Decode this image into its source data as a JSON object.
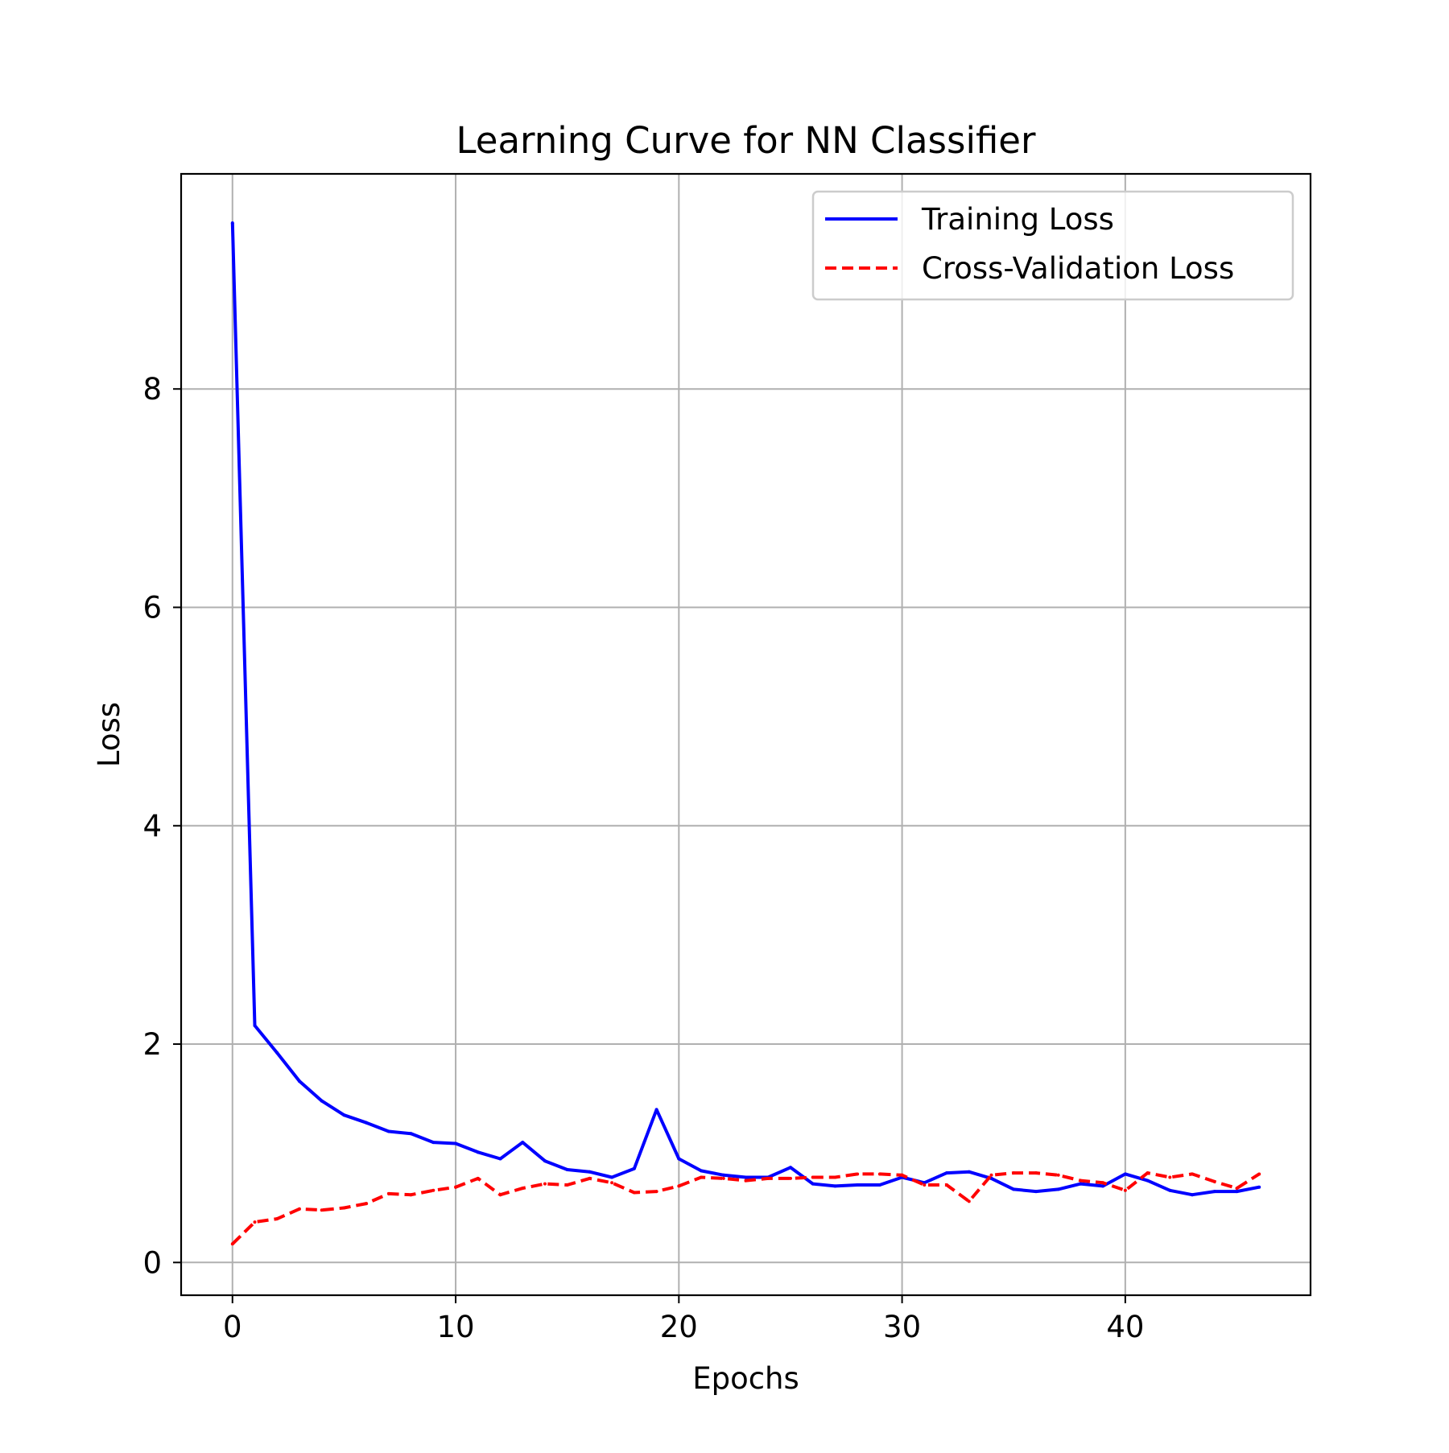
{
  "chart_data": {
    "type": "line",
    "title": "Learning Curve for NN Classifier",
    "xlabel": "Epochs",
    "ylabel": "Loss",
    "xlim": [
      -2.3,
      48.3
    ],
    "ylim": [
      -0.3,
      9.97
    ],
    "xticks": [
      0,
      10,
      20,
      30,
      40
    ],
    "yticks": [
      0,
      2,
      4,
      6,
      8
    ],
    "grid": true,
    "legend": {
      "placement": "top-right",
      "entries": [
        "Training Loss",
        "Cross-Validation Loss"
      ]
    },
    "x": [
      0,
      1,
      2,
      3,
      4,
      5,
      6,
      7,
      8,
      9,
      10,
      11,
      12,
      13,
      14,
      15,
      16,
      17,
      18,
      19,
      20,
      21,
      22,
      23,
      24,
      25,
      26,
      27,
      28,
      29,
      30,
      31,
      32,
      33,
      34,
      35,
      36,
      37,
      38,
      39,
      40,
      41,
      42,
      43,
      44,
      45,
      46
    ],
    "series": [
      {
        "name": "Training Loss",
        "color": "#0000ff",
        "style": "solid",
        "values": [
          9.52,
          2.17,
          1.92,
          1.66,
          1.48,
          1.35,
          1.28,
          1.2,
          1.18,
          1.1,
          1.09,
          1.01,
          0.95,
          1.1,
          0.93,
          0.85,
          0.83,
          0.78,
          0.86,
          1.4,
          0.95,
          0.84,
          0.8,
          0.78,
          0.78,
          0.87,
          0.72,
          0.7,
          0.71,
          0.71,
          0.78,
          0.73,
          0.82,
          0.83,
          0.77,
          0.67,
          0.65,
          0.67,
          0.72,
          0.7,
          0.81,
          0.75,
          0.66,
          0.62,
          0.65,
          0.65,
          0.69
        ]
      },
      {
        "name": "Cross-Validation Loss",
        "color": "#ff0000",
        "style": "dashed",
        "values": [
          0.17,
          0.37,
          0.4,
          0.49,
          0.48,
          0.5,
          0.54,
          0.63,
          0.62,
          0.66,
          0.69,
          0.77,
          0.62,
          0.68,
          0.72,
          0.71,
          0.77,
          0.73,
          0.64,
          0.65,
          0.7,
          0.78,
          0.77,
          0.75,
          0.77,
          0.77,
          0.78,
          0.78,
          0.81,
          0.81,
          0.8,
          0.71,
          0.71,
          0.56,
          0.8,
          0.82,
          0.82,
          0.8,
          0.75,
          0.73,
          0.66,
          0.82,
          0.78,
          0.81,
          0.74,
          0.68,
          0.81
        ]
      }
    ]
  }
}
